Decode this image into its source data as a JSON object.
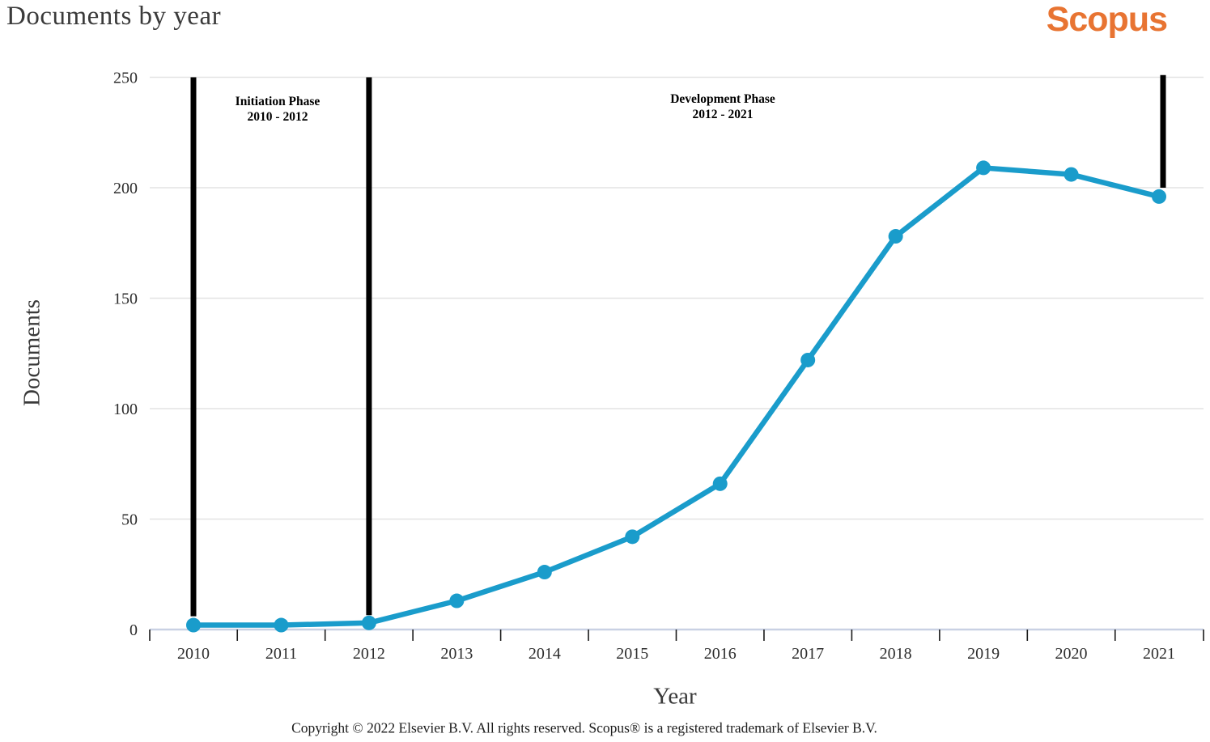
{
  "header": {
    "title": "Documents by year",
    "logo_text": "Scopus",
    "logo_color": "#e87432"
  },
  "chart_data": {
    "type": "line",
    "title": "Documents by year",
    "xlabel": "Year",
    "ylabel": "Documents",
    "x": [
      2010,
      2011,
      2012,
      2013,
      2014,
      2015,
      2016,
      2017,
      2018,
      2019,
      2020,
      2021
    ],
    "series": [
      {
        "name": "Documents",
        "values": [
          2,
          2,
          3,
          13,
          26,
          42,
          66,
          122,
          178,
          209,
          206,
          196
        ]
      }
    ],
    "ylim": [
      0,
      250
    ],
    "yticks": [
      0,
      50,
      100,
      150,
      200,
      250
    ],
    "grid": "horizontal gridlines at every 50",
    "legend": "none",
    "line_color": "#1a9ccb",
    "gridline_color": "#e3e3e3",
    "axis_line_color": "#c9d1e4",
    "annotations": {
      "phases": [
        {
          "label": "Initiation Phase",
          "range": "2010 - 2012"
        },
        {
          "label": "Development Phase",
          "range": "2012 - 2021"
        }
      ],
      "dividers": [
        {
          "year": 2010,
          "top_value": 250,
          "bottom_value": 6
        },
        {
          "year": 2012,
          "top_value": 250,
          "bottom_value": 6.5
        },
        {
          "year": 2021,
          "top_value": 251,
          "bottom_value": 200
        }
      ],
      "divider_color": "#000000"
    }
  },
  "footer": {
    "copyright": "Copyright © 2022 Elsevier B.V. All rights reserved. Scopus® is a registered trademark of Elsevier B.V."
  }
}
